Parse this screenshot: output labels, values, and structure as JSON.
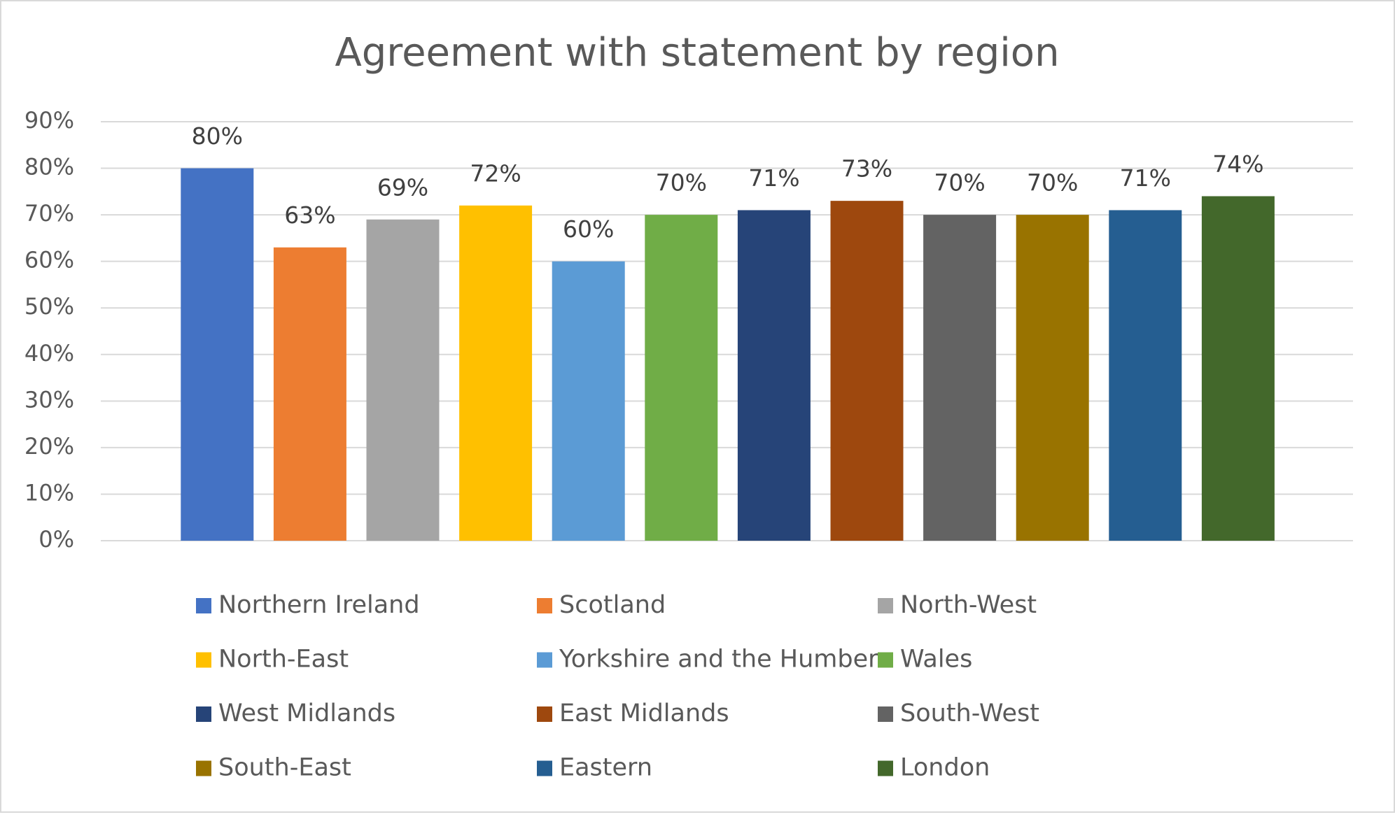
{
  "chart_data": {
    "type": "bar",
    "title": "Agreement with statement by region",
    "ylim": [
      0,
      90
    ],
    "yticks": [
      {
        "value": 0,
        "label": "0%"
      },
      {
        "value": 10,
        "label": "10%"
      },
      {
        "value": 20,
        "label": "20%"
      },
      {
        "value": 30,
        "label": "30%"
      },
      {
        "value": 40,
        "label": "40%"
      },
      {
        "value": 50,
        "label": "50%"
      },
      {
        "value": 60,
        "label": "60%"
      },
      {
        "value": 70,
        "label": "70%"
      },
      {
        "value": 80,
        "label": "80%"
      },
      {
        "value": 90,
        "label": "90%"
      }
    ],
    "grid": true,
    "legend": "bottom",
    "series": [
      {
        "name": "Northern Ireland",
        "color": "#4472c4",
        "values": [
          80
        ],
        "value_labels": [
          "80%"
        ]
      },
      {
        "name": "Scotland",
        "color": "#ed7d31",
        "values": [
          63
        ],
        "value_labels": [
          "63%"
        ]
      },
      {
        "name": "North-West",
        "color": "#a5a5a5",
        "values": [
          69
        ],
        "value_labels": [
          "69%"
        ]
      },
      {
        "name": "North-East",
        "color": "#ffc000",
        "values": [
          72
        ],
        "value_labels": [
          "72%"
        ]
      },
      {
        "name": "Yorkshire and the Humber",
        "color": "#5b9bd5",
        "values": [
          60
        ],
        "value_labels": [
          "60%"
        ]
      },
      {
        "name": "Wales",
        "color": "#70ad47",
        "values": [
          70
        ],
        "value_labels": [
          "70%"
        ]
      },
      {
        "name": "West Midlands",
        "color": "#264478",
        "values": [
          71
        ],
        "value_labels": [
          "71%"
        ]
      },
      {
        "name": "East Midlands",
        "color": "#9e480e",
        "values": [
          73
        ],
        "value_labels": [
          "73%"
        ]
      },
      {
        "name": "South-West",
        "color": "#636363",
        "values": [
          70
        ],
        "value_labels": [
          "70%"
        ]
      },
      {
        "name": "South-East",
        "color": "#997300",
        "values": [
          70
        ],
        "value_labels": [
          "70%"
        ]
      },
      {
        "name": "Eastern",
        "color": "#255e91",
        "values": [
          71
        ],
        "value_labels": [
          "71%"
        ]
      },
      {
        "name": "London",
        "color": "#43682b",
        "values": [
          74
        ],
        "value_labels": [
          "74%"
        ]
      }
    ]
  }
}
